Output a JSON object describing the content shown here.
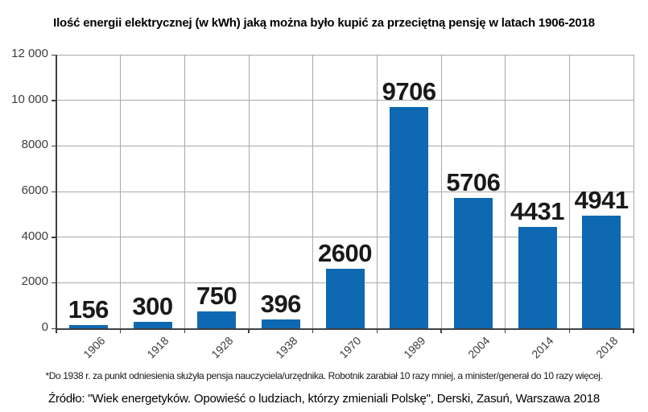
{
  "chart_data": {
    "type": "bar",
    "title": "Ilość energii elektrycznej (w kWh) jaką można było kupić za przeciętną pensję w latach 1906-2018",
    "categories": [
      "1906",
      "1918",
      "1928",
      "1938",
      "1970",
      "1989",
      "2004",
      "2014",
      "2018"
    ],
    "values": [
      156,
      300,
      750,
      396,
      2600,
      9706,
      5706,
      4431,
      4941
    ],
    "value_labels": [
      "156",
      "300",
      "750",
      "396",
      "2600",
      "9706",
      "5706",
      "4431",
      "4941"
    ],
    "xlabel": "",
    "ylabel": "",
    "ylim": [
      0,
      12000
    ],
    "ytick_values": [
      0,
      2000,
      4000,
      6000,
      8000,
      10000,
      12000
    ],
    "ytick_labels": [
      "0",
      "2000",
      "4000",
      "6000",
      "8000",
      "10 000",
      "12 000"
    ],
    "grid": "horizontal and vertical, light gray",
    "legend": "none",
    "footnote": "*Do 1938 r. za punkt odniesienia służyła pensja nauczyciela/urzędnika. Robotnik zarabiał 10 razy mniej, a minister/generał do 10 razy więcej.",
    "source": "Źródło: \"Wiek energetyków. Opowieść o ludziach, którzy zmieniali Polskę\", Derski, Zasuń, Warszawa 2018"
  },
  "colors": {
    "bar": "#0e69b2",
    "grid": "#a9a9a9",
    "axis": "#404040",
    "tick_text": "#3c3c3c",
    "value_text": "#191919"
  }
}
